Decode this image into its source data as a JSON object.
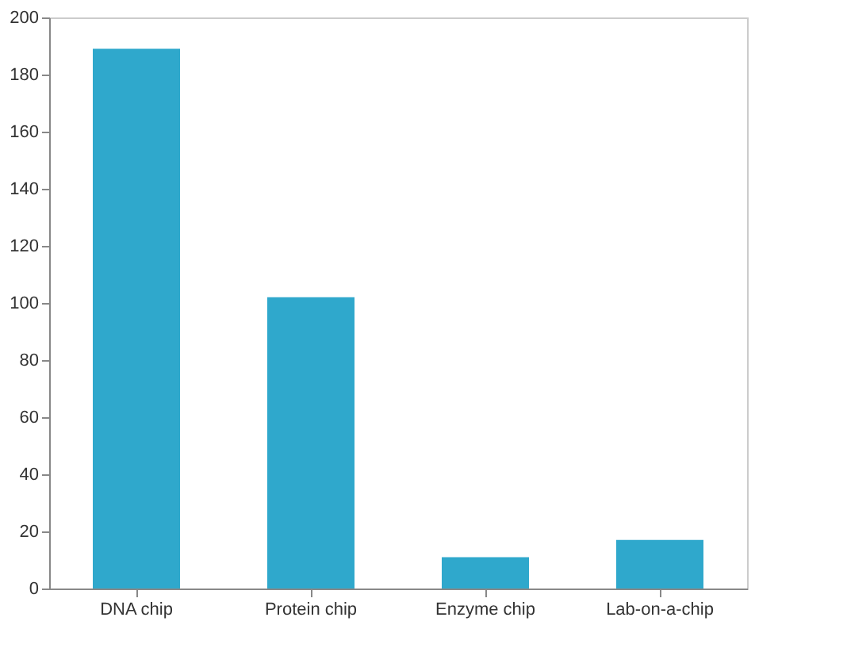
{
  "chart_data": {
    "type": "bar",
    "categories": [
      "DNA chip",
      "Protein chip",
      "Enzyme chip",
      "Lab-on-a-chip"
    ],
    "values": [
      189,
      102,
      11,
      17
    ],
    "color": "#2fa8cc",
    "ylim": [
      0,
      200
    ],
    "yticks": [
      0,
      20,
      40,
      60,
      80,
      100,
      120,
      140,
      160,
      180,
      200
    ],
    "grid": false
  }
}
